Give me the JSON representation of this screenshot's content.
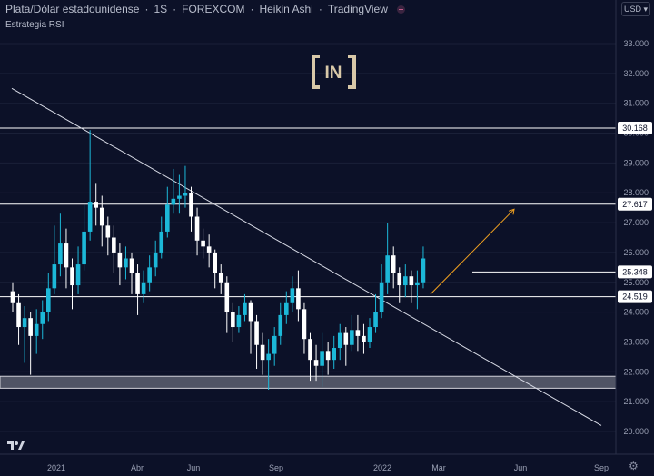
{
  "header": {
    "title": "Plata/Dólar estadounidense",
    "interval": "1S",
    "exchange": "FOREXCOM",
    "chart_style": "Heikin Ashi",
    "platform": "TradingView",
    "study": "Estrategia RSI"
  },
  "toolbar": {
    "currency": "USD"
  },
  "watermark": {
    "text": "[IN]"
  },
  "colors": {
    "background": "#0c1128",
    "up": "#1cb8d8",
    "down": "#ffffff",
    "hline": "#ffffff",
    "trendline": "#d8dbe6",
    "arrow": "#f0a020",
    "zone": "#d0d0d8",
    "grid": "#1a2038"
  },
  "chart_data": {
    "type": "candlestick",
    "style": "Heikin Ashi",
    "y_axis": {
      "min": 20.0,
      "max": 33.0,
      "ticks": [
        "20.000",
        "21.000",
        "22.000",
        "23.000",
        "24.000",
        "25.000",
        "26.000",
        "27.000",
        "28.000",
        "29.000",
        "30.000",
        "31.000",
        "32.000",
        "33.000"
      ]
    },
    "x_axis": {
      "labels": [
        "2021",
        "Abr",
        "Jun",
        "Sep",
        "2022",
        "Mar",
        "Jun",
        "Sep"
      ]
    },
    "levels": [
      {
        "label": "30.168",
        "value": 30.168
      },
      {
        "label": "27.617",
        "value": 27.617
      },
      {
        "label": "25.348",
        "value": 25.348
      },
      {
        "label": "24.519",
        "value": 24.519
      }
    ],
    "support_zone": {
      "from": 21.45,
      "to": 21.85
    },
    "trendline": {
      "start": {
        "date": "2020-10",
        "price": 31.5
      },
      "end": {
        "date": "2022-08",
        "price": 20.2
      }
    },
    "projection_arrow": {
      "from": 24.6,
      "to": 27.45
    },
    "candles": [
      [
        24.7,
        24.3,
        25.0,
        24.0
      ],
      [
        24.3,
        23.5,
        24.6,
        22.9
      ],
      [
        23.5,
        23.8,
        24.2,
        22.3
      ],
      [
        23.8,
        23.2,
        24.0,
        21.9
      ],
      [
        23.2,
        23.6,
        24.1,
        22.6
      ],
      [
        23.6,
        24.0,
        24.4,
        23.1
      ],
      [
        24.0,
        24.8,
        25.3,
        23.7
      ],
      [
        24.8,
        25.6,
        26.9,
        24.6
      ],
      [
        25.6,
        26.3,
        27.3,
        25.2
      ],
      [
        26.3,
        25.5,
        26.8,
        24.8
      ],
      [
        25.5,
        24.9,
        25.8,
        24.1
      ],
      [
        24.9,
        25.6,
        26.2,
        24.6
      ],
      [
        25.6,
        26.7,
        27.6,
        25.4
      ],
      [
        26.7,
        27.7,
        30.1,
        26.4
      ],
      [
        27.7,
        27.5,
        28.3,
        26.9
      ],
      [
        27.5,
        26.9,
        27.9,
        26.2
      ],
      [
        26.9,
        26.5,
        27.2,
        25.9
      ],
      [
        26.5,
        26.0,
        26.9,
        25.3
      ],
      [
        26.0,
        25.5,
        26.3,
        24.9
      ],
      [
        25.5,
        25.8,
        26.2,
        25.1
      ],
      [
        25.8,
        25.3,
        26.0,
        24.6
      ],
      [
        25.3,
        24.6,
        25.6,
        23.9
      ],
      [
        24.6,
        25.0,
        25.4,
        24.3
      ],
      [
        25.0,
        25.5,
        25.9,
        24.7
      ],
      [
        25.5,
        26.0,
        26.4,
        25.2
      ],
      [
        26.0,
        26.7,
        27.2,
        25.8
      ],
      [
        26.7,
        27.6,
        28.2,
        26.5
      ],
      [
        27.6,
        27.8,
        28.8,
        27.3
      ],
      [
        27.8,
        27.9,
        28.6,
        27.3
      ],
      [
        27.9,
        28.0,
        28.9,
        27.5
      ],
      [
        28.0,
        27.2,
        28.2,
        26.7
      ],
      [
        27.2,
        26.4,
        27.5,
        25.9
      ],
      [
        26.4,
        26.2,
        26.8,
        25.8
      ],
      [
        26.2,
        26.0,
        26.6,
        25.5
      ],
      [
        26.0,
        25.3,
        26.1,
        24.8
      ],
      [
        25.3,
        25.0,
        25.6,
        24.6
      ],
      [
        25.0,
        24.0,
        25.2,
        23.3
      ],
      [
        24.0,
        23.5,
        24.3,
        23.0
      ],
      [
        23.5,
        23.9,
        24.2,
        23.3
      ],
      [
        23.9,
        24.3,
        24.6,
        23.7
      ],
      [
        24.3,
        23.7,
        24.4,
        22.6
      ],
      [
        23.7,
        22.9,
        23.9,
        22.1
      ],
      [
        22.9,
        22.4,
        23.3,
        21.9
      ],
      [
        22.4,
        22.6,
        23.1,
        21.4
      ],
      [
        22.6,
        23.2,
        23.5,
        22.2
      ],
      [
        23.2,
        23.9,
        24.3,
        22.9
      ],
      [
        23.9,
        24.3,
        24.7,
        23.6
      ],
      [
        24.3,
        24.8,
        25.2,
        24.0
      ],
      [
        24.8,
        24.1,
        25.4,
        23.7
      ],
      [
        24.1,
        23.1,
        24.3,
        22.6
      ],
      [
        23.1,
        22.4,
        23.3,
        21.7
      ],
      [
        22.4,
        22.2,
        22.9,
        21.7
      ],
      [
        22.2,
        22.7,
        23.3,
        21.5
      ],
      [
        22.7,
        22.4,
        23.0,
        21.9
      ],
      [
        22.4,
        22.8,
        23.2,
        22.1
      ],
      [
        22.8,
        23.3,
        23.6,
        22.4
      ],
      [
        23.3,
        22.9,
        23.5,
        22.2
      ],
      [
        22.9,
        23.4,
        23.9,
        22.7
      ],
      [
        23.4,
        23.2,
        23.9,
        22.7
      ],
      [
        23.2,
        23.0,
        23.6,
        22.6
      ],
      [
        23.0,
        23.5,
        23.8,
        22.8
      ],
      [
        23.5,
        24.0,
        24.6,
        23.3
      ],
      [
        24.0,
        25.0,
        25.6,
        23.8
      ],
      [
        25.0,
        25.9,
        27.0,
        24.6
      ],
      [
        25.9,
        25.3,
        26.2,
        24.8
      ],
      [
        25.3,
        24.9,
        25.5,
        24.3
      ],
      [
        24.9,
        25.2,
        25.6,
        24.5
      ],
      [
        25.2,
        24.9,
        25.4,
        24.3
      ],
      [
        24.9,
        25.0,
        25.4,
        24.1
      ],
      [
        25.0,
        25.8,
        26.2,
        24.8
      ]
    ]
  },
  "footer": {
    "settings_icon": "gear-icon",
    "logo": "tradingview-logo"
  }
}
